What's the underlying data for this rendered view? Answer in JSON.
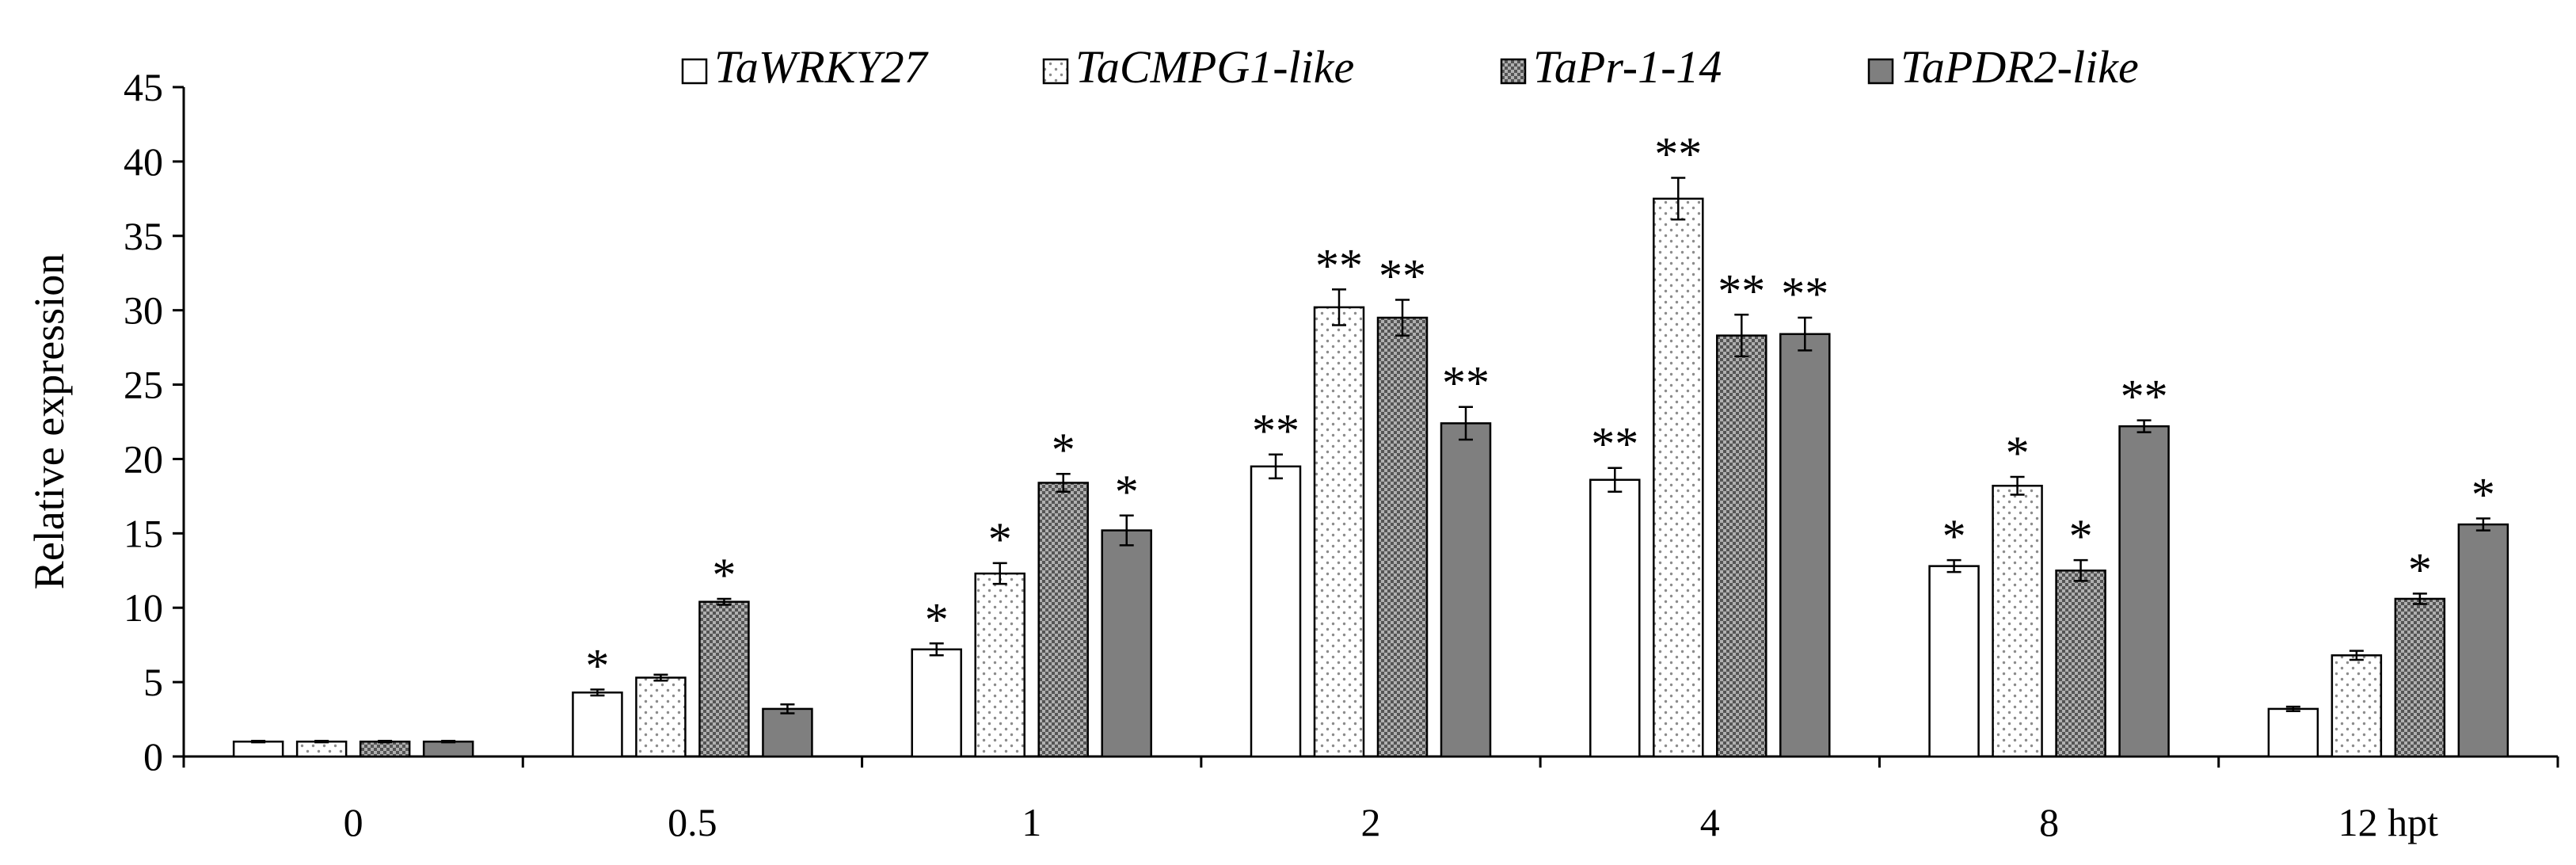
{
  "chart_data": {
    "type": "bar",
    "title": "",
    "xlabel": "",
    "ylabel": "Relative expression",
    "ylim": [
      0,
      45
    ],
    "yticks": [
      0,
      5,
      10,
      15,
      20,
      25,
      30,
      35,
      40,
      45
    ],
    "categories": [
      "0",
      "0.5",
      "1",
      "2",
      "4",
      "8",
      "12 hpt"
    ],
    "legend_position": "top",
    "grid": false,
    "series": [
      {
        "name": "TaWRKY27",
        "pattern": "white",
        "values": [
          1.0,
          4.3,
          7.2,
          19.5,
          18.6,
          12.8,
          3.2
        ],
        "errors": [
          0.05,
          0.2,
          0.4,
          0.8,
          0.8,
          0.4,
          0.15
        ],
        "significance": [
          "",
          "*",
          "*",
          "**",
          "**",
          "*",
          ""
        ]
      },
      {
        "name": "TaCMPG1-like",
        "pattern": "dotted",
        "values": [
          1.0,
          5.3,
          12.3,
          30.2,
          37.5,
          18.2,
          6.8
        ],
        "errors": [
          0.05,
          0.2,
          0.7,
          1.2,
          1.4,
          0.6,
          0.3
        ],
        "significance": [
          "",
          "",
          "*",
          "**",
          "**",
          "*",
          ""
        ]
      },
      {
        "name": "TaPr-1-14",
        "pattern": "checkered",
        "values": [
          1.0,
          10.4,
          18.4,
          29.5,
          28.3,
          12.5,
          10.6
        ],
        "errors": [
          0.05,
          0.2,
          0.6,
          1.2,
          1.4,
          0.7,
          0.35
        ],
        "significance": [
          "",
          "*",
          "*",
          "**",
          "**",
          "*",
          "*"
        ]
      },
      {
        "name": "TaPDR2-like",
        "pattern": "gray",
        "values": [
          1.0,
          3.2,
          15.2,
          22.4,
          28.4,
          22.2,
          15.6
        ],
        "errors": [
          0.05,
          0.3,
          1.0,
          1.1,
          1.1,
          0.4,
          0.4
        ],
        "significance": [
          "",
          "",
          "*",
          "**",
          "**",
          "**",
          "*"
        ]
      }
    ],
    "colors": {
      "gray_fill": "#7f7f7f",
      "dot_color": "#8c8c8c",
      "check_dark": "#555555",
      "check_light": "#b0b0b0"
    }
  }
}
